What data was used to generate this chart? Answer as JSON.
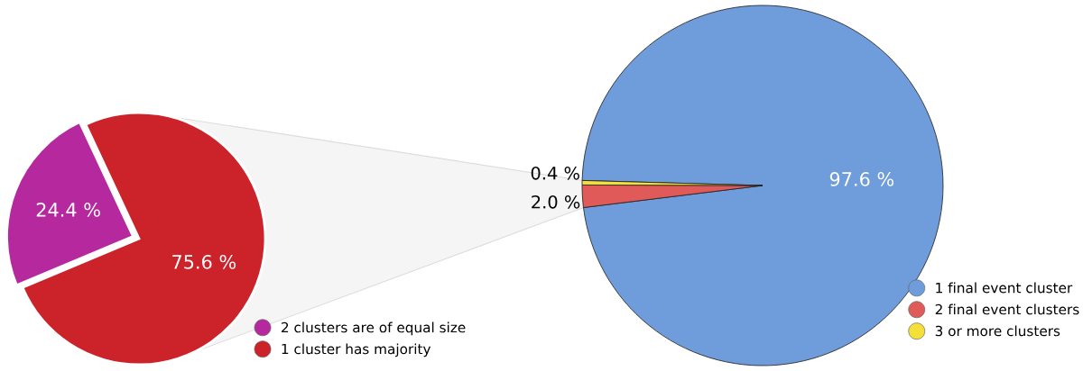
{
  "chart_data": [
    {
      "type": "pie",
      "categories": [
        "2 clusters are of equal size",
        "1 cluster has majority"
      ],
      "values": [
        24.4,
        75.6
      ],
      "colors": [
        "#b5289e",
        "#cc2229"
      ],
      "value_labels": [
        "24.4 %",
        "75.6 %"
      ],
      "legend": "bottom right"
    },
    {
      "type": "pie",
      "categories": [
        "1 final event cluster",
        "2 final event clusters",
        "3 or more clusters"
      ],
      "values": [
        97.6,
        2.0,
        0.4
      ],
      "colors": [
        "#6f9cdb",
        "#e05a5a",
        "#f5e03a"
      ],
      "value_labels": [
        "97.6 %",
        "2.0 %",
        "0.4 %"
      ],
      "legend": "bottom right"
    }
  ]
}
